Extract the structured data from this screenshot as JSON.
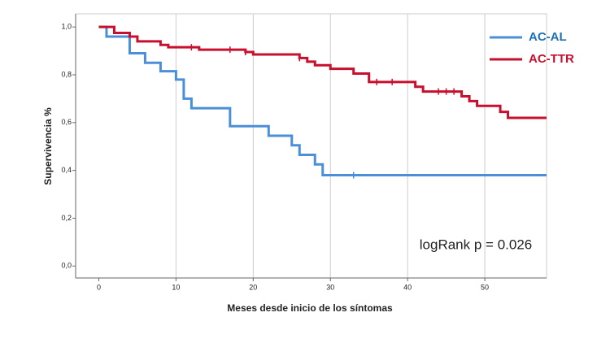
{
  "chart_data": {
    "type": "step",
    "x_label": "Meses desde inicio de los síntomas",
    "y_label": "Supervivencia %",
    "annotation": "logRank p = 0.026",
    "xlim": [
      -3,
      58
    ],
    "ylim": [
      -0.05,
      1.055
    ],
    "xticks": [
      0,
      10,
      20,
      30,
      40,
      50
    ],
    "yticks": [
      {
        "value": 0,
        "label": "0,0"
      },
      {
        "value": 0.2,
        "label": "0,2"
      },
      {
        "value": 0.4,
        "label": "0,4"
      },
      {
        "value": 0.6,
        "label": "0,6"
      },
      {
        "value": 0.8,
        "label": "0,8"
      },
      {
        "value": 1.0,
        "label": "1,0"
      }
    ],
    "grid": true,
    "legend": "upper right",
    "series": [
      {
        "name": "AC-AL",
        "color": "#4a8fd8",
        "label_color": "#1f6fb5",
        "x": [
          0,
          1,
          4,
          6,
          8,
          10,
          11,
          12,
          17,
          22,
          25,
          26,
          28,
          29,
          58
        ],
        "values": [
          1.0,
          0.96,
          0.89,
          0.85,
          0.815,
          0.78,
          0.7,
          0.66,
          0.585,
          0.545,
          0.505,
          0.465,
          0.425,
          0.38,
          0.38
        ],
        "censored": [
          33
        ]
      },
      {
        "name": "AC-TTR",
        "color": "#c8102e",
        "label_color": "#c8102e",
        "x": [
          0,
          2,
          4,
          5,
          8,
          9,
          13,
          19,
          20,
          26,
          27,
          28,
          30,
          33,
          35,
          41,
          42,
          47,
          48,
          49,
          52,
          53,
          58
        ],
        "values": [
          1.0,
          0.975,
          0.96,
          0.94,
          0.925,
          0.915,
          0.905,
          0.895,
          0.885,
          0.87,
          0.855,
          0.84,
          0.825,
          0.805,
          0.77,
          0.75,
          0.73,
          0.71,
          0.69,
          0.67,
          0.645,
          0.62,
          0.62
        ],
        "censored": [
          12,
          17,
          19,
          26,
          36,
          38,
          44,
          45,
          46
        ]
      }
    ]
  }
}
